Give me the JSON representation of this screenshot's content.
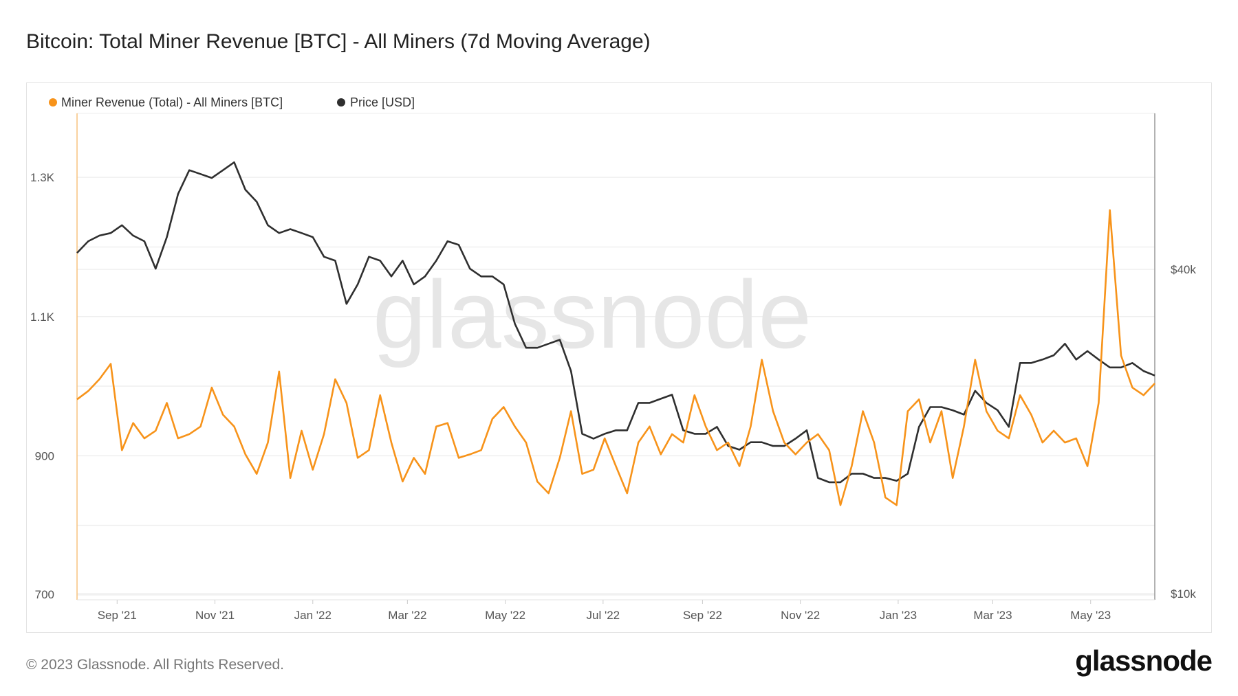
{
  "title": "Bitcoin: Total Miner Revenue [BTC] - All Miners (7d Moving Average)",
  "footer": {
    "copyright": "© 2023 Glassnode. All Rights Reserved.",
    "logo": "glassnode"
  },
  "watermark": "glassnode",
  "colors": {
    "revenue": "#f7931a",
    "price": "#2f2f2f",
    "grid": "#efefef"
  },
  "chart_data": {
    "type": "line",
    "title": "Bitcoin: Total Miner Revenue [BTC] - All Miners (7d Moving Average)",
    "start_date": "2021-08-07",
    "interval_days": 7,
    "legend_position": "top-left",
    "legend": [
      "Miner Revenue (Total) - All Miners [BTC]",
      "Price [USD]"
    ],
    "x_ticks": [
      {
        "label": "Sep '21",
        "date": "2021-09-01"
      },
      {
        "label": "Nov '21",
        "date": "2021-11-01"
      },
      {
        "label": "Jan '22",
        "date": "2022-01-01"
      },
      {
        "label": "Mar '22",
        "date": "2022-03-01"
      },
      {
        "label": "May '22",
        "date": "2022-05-01"
      },
      {
        "label": "Jul '22",
        "date": "2022-07-01"
      },
      {
        "label": "Sep '22",
        "date": "2022-09-01"
      },
      {
        "label": "Nov '22",
        "date": "2022-11-01"
      },
      {
        "label": "Jan '23",
        "date": "2023-01-01"
      },
      {
        "label": "Mar '23",
        "date": "2023-03-01"
      },
      {
        "label": "May '23",
        "date": "2023-05-01"
      }
    ],
    "y_left": {
      "label": "Miner Revenue [BTC]",
      "range": [
        693,
        1392
      ],
      "ticks": [
        {
          "v": 700,
          "label": "700"
        },
        {
          "v": 900,
          "label": "900"
        },
        {
          "v": 1100,
          "label": "1.1K"
        },
        {
          "v": 1300,
          "label": "1.3K"
        }
      ],
      "minor_grid": [
        800,
        1000,
        1200
      ]
    },
    "y_right": {
      "label": "Price [USD]",
      "scale": "log",
      "range": [
        9740,
        77900
      ],
      "ticks": [
        {
          "v": 10000,
          "label": "$10k"
        },
        {
          "v": 40000,
          "label": "$40k"
        }
      ]
    },
    "series": [
      {
        "name": "Miner Revenue (Total) - All Miners [BTC]",
        "axis": "left",
        "values": [
          981,
          993,
          1010,
          1032,
          908,
          947,
          925,
          936,
          976,
          925,
          931,
          942,
          998,
          959,
          942,
          902,
          874,
          919,
          1021,
          868,
          936,
          880,
          931,
          1010,
          976,
          897,
          908,
          987,
          919,
          863,
          897,
          874,
          942,
          947,
          897,
          902,
          908,
          953,
          970,
          942,
          919,
          863,
          846,
          897,
          964,
          874,
          880,
          925,
          885,
          846,
          919,
          942,
          902,
          931,
          919,
          987,
          942,
          908,
          919,
          885,
          942,
          1038,
          964,
          919,
          902,
          919,
          931,
          908,
          829,
          885,
          964,
          919,
          840,
          829,
          964,
          981,
          919,
          964,
          868,
          942,
          1038,
          964,
          936,
          925,
          987,
          959,
          919,
          936,
          919,
          925,
          885,
          976,
          1253,
          1044,
          998,
          987,
          1004
        ]
      },
      {
        "name": "Price [USD]",
        "axis": "right",
        "values": [
          42900,
          45100,
          46200,
          46700,
          48300,
          46200,
          45100,
          40100,
          45900,
          55200,
          61100,
          60100,
          59100,
          61100,
          63200,
          56200,
          53400,
          48300,
          46700,
          47500,
          46700,
          45900,
          42200,
          41500,
          34500,
          37500,
          42200,
          41500,
          38800,
          41500,
          37500,
          38800,
          41500,
          45100,
          44400,
          40100,
          38800,
          38800,
          37500,
          31700,
          28600,
          28600,
          29100,
          29600,
          25900,
          19800,
          19400,
          19800,
          20100,
          20100,
          22600,
          22600,
          23000,
          23400,
          20100,
          19800,
          19800,
          20400,
          18800,
          18500,
          19100,
          19100,
          18800,
          18800,
          19400,
          20100,
          16400,
          16100,
          16100,
          16700,
          16700,
          16400,
          16400,
          16200,
          16700,
          20400,
          22200,
          22200,
          21900,
          21500,
          23800,
          22600,
          21900,
          20400,
          26800,
          26800,
          27200,
          27700,
          29100,
          27200,
          28200,
          27200,
          26300,
          26300,
          26800,
          25900,
          25400
        ]
      }
    ]
  }
}
